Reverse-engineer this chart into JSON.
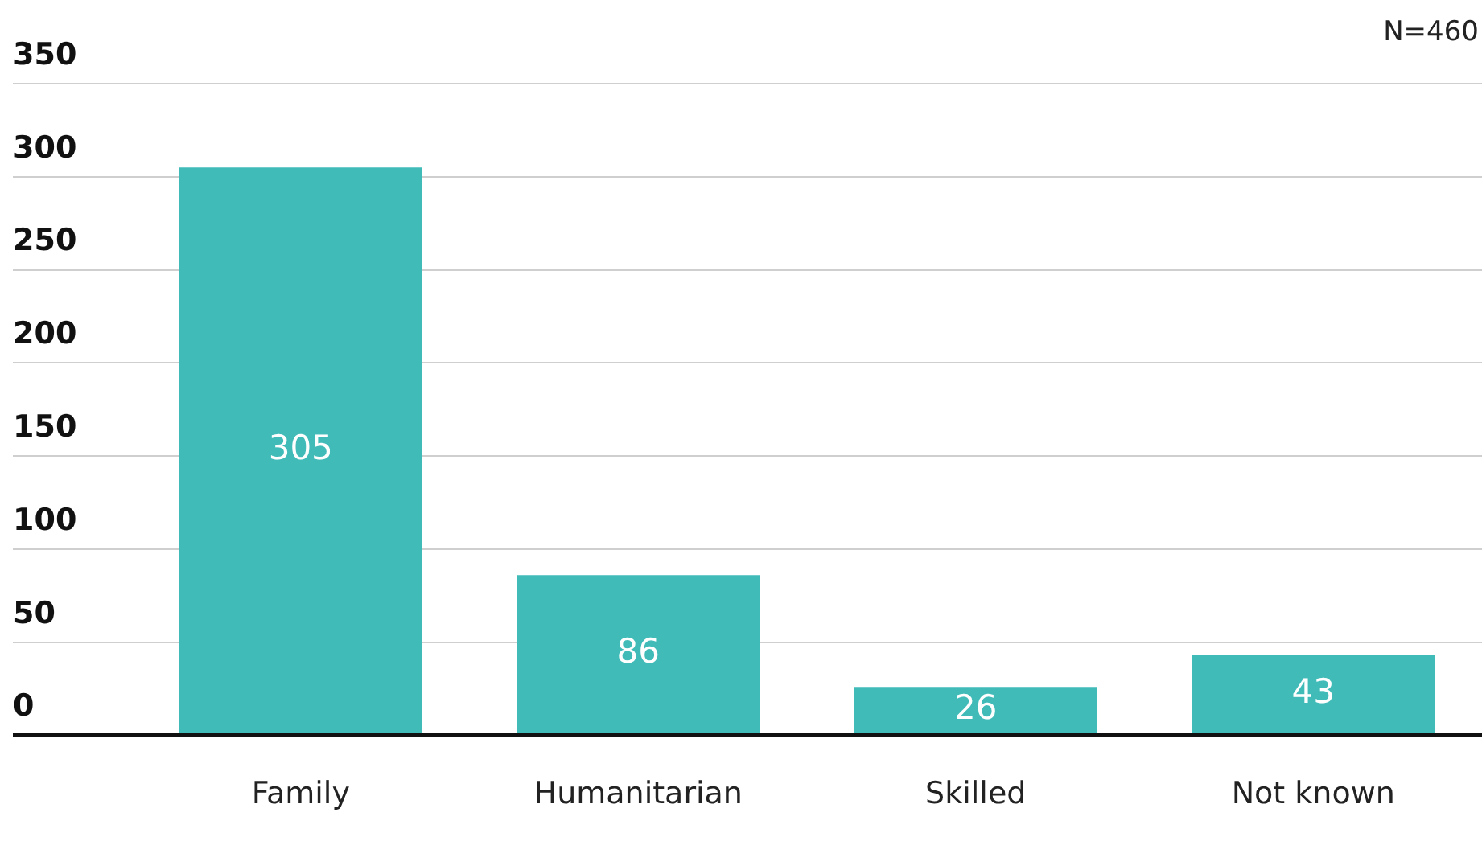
{
  "chart_data": {
    "type": "bar",
    "categories": [
      "Family",
      "Humanitarian",
      "Skilled",
      "Not known"
    ],
    "values": [
      305,
      86,
      26,
      43
    ],
    "color": "#40bbb8",
    "ylim": [
      0,
      350
    ],
    "yticks": [
      0,
      50,
      100,
      150,
      200,
      250,
      300,
      350
    ],
    "grid": "y",
    "data_labels": true,
    "annotations": [
      "N=460"
    ]
  }
}
